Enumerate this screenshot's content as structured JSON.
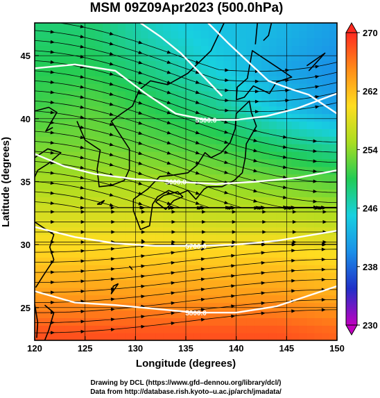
{
  "chart_data": {
    "type": "heatmap",
    "title": "MSM 09Z09Apr2023 (500.0hPa)",
    "xlabel": "Longitude (degrees)",
    "ylabel": "Latitude  (degrees)",
    "xlim": [
      120,
      150
    ],
    "ylim": [
      22.4,
      47.6
    ],
    "x_ticks": [
      120,
      125,
      130,
      135,
      140,
      145,
      150
    ],
    "y_ticks": [
      25,
      30,
      35,
      40,
      45
    ],
    "grid": true,
    "colorbar": {
      "min": 230,
      "max": 270,
      "ticks": [
        230,
        238,
        246,
        254,
        262,
        270
      ],
      "colors": [
        "#c000c0",
        "#2030c8",
        "#1a8fe8",
        "#18d0e0",
        "#22cc55",
        "#aadd20",
        "#ffdd20",
        "#ff8c18",
        "#ff2a20"
      ]
    },
    "temperature_field": {
      "description_rows_lat": [
        47,
        44,
        41,
        38,
        35,
        32,
        29,
        26,
        23
      ],
      "west_to_east_K": [
        [
          249,
          249,
          246,
          244,
          243,
          241
        ],
        [
          250,
          250,
          248,
          245,
          242,
          240
        ],
        [
          251,
          252,
          250,
          248,
          244,
          241
        ],
        [
          253,
          253,
          252,
          251,
          249,
          247
        ],
        [
          255,
          255,
          255,
          254,
          253,
          252
        ],
        [
          258,
          258,
          258,
          257,
          257,
          256
        ],
        [
          261,
          261,
          261,
          261,
          261,
          260
        ],
        [
          264,
          264,
          264,
          264,
          264,
          263
        ],
        [
          268,
          268,
          268,
          268,
          268,
          267
        ]
      ],
      "column_lons": [
        120,
        126,
        132,
        138,
        144,
        150
      ]
    },
    "contours": [
      {
        "label": "5500.0",
        "points": [
          [
            120.0,
            44.0
          ],
          [
            124.0,
            44.3
          ],
          [
            128.0,
            43.8
          ],
          [
            131.0,
            42.0
          ],
          [
            134.0,
            40.4
          ],
          [
            137.0,
            39.9
          ],
          [
            140.0,
            39.9
          ],
          [
            143.0,
            40.2
          ],
          [
            146.0,
            40.8
          ],
          [
            150.0,
            42.0
          ]
        ]
      },
      {
        "label": "5600.0",
        "points": [
          [
            120.0,
            37.2
          ],
          [
            123.0,
            36.2
          ],
          [
            126.0,
            35.6
          ],
          [
            130.0,
            35.2
          ],
          [
            134.0,
            35.0
          ],
          [
            138.0,
            34.8
          ],
          [
            142.0,
            35.0
          ],
          [
            146.0,
            35.3
          ],
          [
            150.0,
            35.9
          ]
        ]
      },
      {
        "label": "5700.0",
        "points": [
          [
            120.0,
            31.4
          ],
          [
            124.0,
            30.6
          ],
          [
            128.0,
            30.1
          ],
          [
            132.0,
            29.9
          ],
          [
            136.0,
            29.9
          ],
          [
            140.0,
            30.0
          ],
          [
            144.0,
            30.3
          ],
          [
            147.0,
            30.7
          ],
          [
            150.0,
            31.1
          ]
        ]
      },
      {
        "label": "5800.0",
        "points": [
          [
            120.0,
            26.3
          ],
          [
            124.0,
            25.4
          ],
          [
            128.0,
            25.2
          ],
          [
            132.0,
            24.9
          ],
          [
            136.0,
            24.6
          ],
          [
            140.0,
            24.6
          ],
          [
            144.0,
            25.1
          ],
          [
            147.0,
            25.9
          ],
          [
            150.0,
            26.7
          ]
        ]
      },
      {
        "label": "",
        "points": [
          [
            130.5,
            47.6
          ],
          [
            132.5,
            46.5
          ],
          [
            134.5,
            45.2
          ],
          [
            136.8,
            43.3
          ],
          [
            138.6,
            41.8
          ]
        ]
      },
      {
        "label": "",
        "points": [
          [
            137.2,
            47.6
          ],
          [
            139.2,
            46.0
          ],
          [
            141.2,
            44.5
          ],
          [
            143.2,
            43.0
          ],
          [
            145.6,
            42.3
          ],
          [
            147.2,
            41.9
          ],
          [
            150.0,
            40.4
          ]
        ]
      }
    ],
    "wind_arrows": true,
    "coastlines": true,
    "footnotes": [
      "Drawing by DCL (https://www.gfd–dennou.org/library/dcl/)",
      "Data from http://database.rish.kyoto–u.ac.jp/arch/jmadata/"
    ]
  }
}
